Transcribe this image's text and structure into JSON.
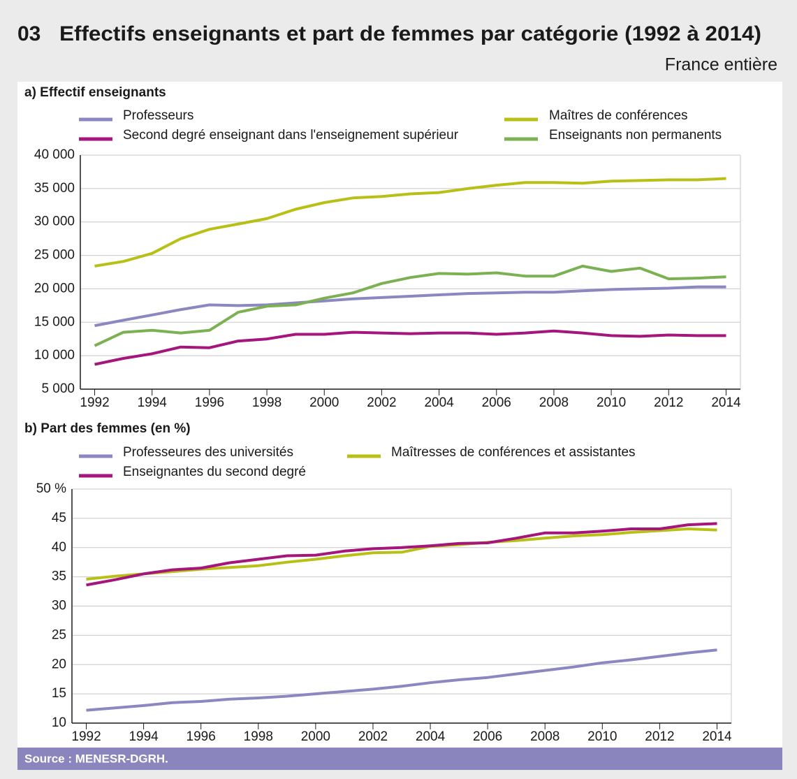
{
  "header": {
    "number": "03",
    "title": "Effectifs enseignants et part de femmes par catégorie (1992 à 2014)",
    "subtitle": "France entière"
  },
  "chart_data": [
    {
      "type": "line",
      "title": "a) Effectif enseignants",
      "x": [
        1992,
        1993,
        1994,
        1995,
        1996,
        1997,
        1998,
        1999,
        2000,
        2001,
        2002,
        2003,
        2004,
        2005,
        2006,
        2007,
        2008,
        2009,
        2010,
        2011,
        2012,
        2013,
        2014
      ],
      "xlim": [
        1991.5,
        2014.5
      ],
      "xticks": [
        1992,
        1994,
        1996,
        1998,
        2000,
        2002,
        2004,
        2006,
        2008,
        2010,
        2012,
        2014
      ],
      "ylim": [
        5000,
        40000
      ],
      "yticks": [
        {
          "value": 5000,
          "label": "5 000"
        },
        {
          "value": 10000,
          "label": "10 000"
        },
        {
          "value": 15000,
          "label": "15 000"
        },
        {
          "value": 20000,
          "label": "20 000"
        },
        {
          "value": 25000,
          "label": "25 000"
        },
        {
          "value": 30000,
          "label": "30 000"
        },
        {
          "value": 35000,
          "label": "35 000"
        },
        {
          "value": 40000,
          "label": "40 000"
        }
      ],
      "grid": true,
      "series": [
        {
          "name": "Professeurs",
          "color": "#8b87c1",
          "values": [
            14500,
            15300,
            16100,
            16900,
            17600,
            17500,
            17600,
            17900,
            18200,
            18500,
            18700,
            18900,
            19100,
            19300,
            19400,
            19500,
            19500,
            19700,
            19900,
            20000,
            20100,
            20300,
            20300
          ]
        },
        {
          "name": "Maîtres de conférences",
          "color": "#b8c018",
          "values": [
            23400,
            24100,
            25300,
            27500,
            28900,
            29700,
            30500,
            31900,
            32900,
            33600,
            33800,
            34200,
            34400,
            35000,
            35500,
            35900,
            35900,
            35800,
            36100,
            36200,
            36300,
            36300,
            36500
          ]
        },
        {
          "name": "Second degré enseignant dans l'enseignement supérieur",
          "color": "#a5157b",
          "values": [
            8700,
            9600,
            10300,
            11300,
            11200,
            12200,
            12500,
            13200,
            13200,
            13500,
            13400,
            13300,
            13400,
            13400,
            13200,
            13400,
            13700,
            13400,
            13000,
            12900,
            13100,
            13000,
            13000
          ]
        },
        {
          "name": "Enseignants non permanents",
          "color": "#7bb152",
          "values": [
            11500,
            13500,
            13800,
            13400,
            13800,
            16500,
            17400,
            17600,
            18600,
            19400,
            20800,
            21700,
            22300,
            22200,
            22400,
            21900,
            21900,
            23400,
            22600,
            23100,
            21500,
            21600,
            21800
          ]
        }
      ]
    },
    {
      "type": "line",
      "title": "b) Part des femmes (en %)",
      "x": [
        1992,
        1993,
        1994,
        1995,
        1996,
        1997,
        1998,
        1999,
        2000,
        2001,
        2002,
        2003,
        2004,
        2005,
        2006,
        2007,
        2008,
        2009,
        2010,
        2011,
        2012,
        2013,
        2014
      ],
      "xlim": [
        1991.5,
        2014.5
      ],
      "xticks": [
        1992,
        1994,
        1996,
        1998,
        2000,
        2002,
        2004,
        2006,
        2008,
        2010,
        2012,
        2014
      ],
      "ylim": [
        10,
        50
      ],
      "yticks": [
        10,
        15,
        20,
        25,
        30,
        35,
        40,
        45,
        {
          "value": 50,
          "label": "50 %"
        }
      ],
      "grid": true,
      "series": [
        {
          "name": "Professeures des universités",
          "color": "#8b87c1",
          "values": [
            12.2,
            12.6,
            13.0,
            13.5,
            13.7,
            14.1,
            14.3,
            14.6,
            15.0,
            15.4,
            15.8,
            16.3,
            16.9,
            17.4,
            17.8,
            18.4,
            19.0,
            19.6,
            20.3,
            20.8,
            21.4,
            22.0,
            22.5
          ]
        },
        {
          "name": "Maîtresses de conférences et assistantes",
          "color": "#b8c018",
          "values": [
            34.6,
            35.1,
            35.5,
            35.9,
            36.3,
            36.6,
            36.9,
            37.5,
            38.0,
            38.6,
            39.1,
            39.2,
            40.2,
            40.5,
            40.9,
            41.2,
            41.6,
            42.0,
            42.2,
            42.6,
            42.9,
            43.2,
            43.0
          ]
        },
        {
          "name": "Enseignantes du second degré",
          "color": "#a5157b",
          "values": [
            33.6,
            34.5,
            35.5,
            36.2,
            36.5,
            37.4,
            38.0,
            38.6,
            38.7,
            39.4,
            39.8,
            40.0,
            40.3,
            40.7,
            40.8,
            41.6,
            42.5,
            42.5,
            42.8,
            43.2,
            43.2,
            43.9,
            44.1
          ]
        }
      ]
    }
  ],
  "source": "Source : MENESR-DGRH."
}
